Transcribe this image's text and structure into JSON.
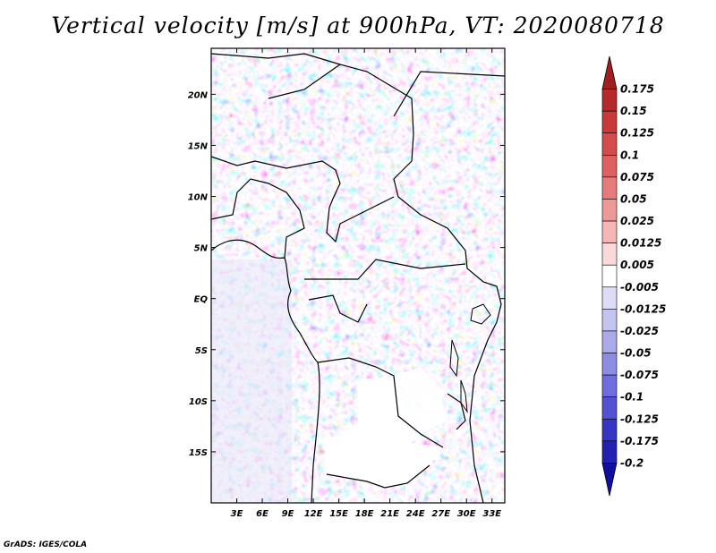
{
  "chart_data": {
    "type": "heatmap",
    "title": "Vertical velocity [m/s] at 900hPa, VT: 2020080718",
    "variable": "Vertical velocity",
    "units": "m/s",
    "level": "900hPa",
    "valid_time": "2020080718",
    "x_ticks": [
      "3E",
      "6E",
      "9E",
      "12E",
      "15E",
      "18E",
      "21E",
      "24E",
      "27E",
      "30E",
      "33E"
    ],
    "x_tick_values": [
      3,
      6,
      9,
      12,
      15,
      18,
      21,
      24,
      27,
      30,
      33
    ],
    "y_ticks": [
      "20N",
      "15N",
      "10N",
      "5N",
      "EQ",
      "5S",
      "10S",
      "15S"
    ],
    "y_tick_values": [
      20,
      15,
      10,
      5,
      0,
      -5,
      -10,
      -15
    ],
    "lon_range": [
      0,
      34.5
    ],
    "lat_range": [
      -20,
      24.5
    ],
    "colorbar": {
      "labels": [
        "0.175",
        "0.15",
        "0.125",
        "0.1",
        "0.075",
        "0.05",
        "0.025",
        "0.0125",
        "0.005",
        "-0.005",
        "-0.0125",
        "-0.025",
        "-0.05",
        "-0.075",
        "-0.1",
        "-0.125",
        "-0.175",
        "-0.2"
      ],
      "colors": [
        "#a11f1f",
        "#b52a2a",
        "#c83a3a",
        "#d54c4c",
        "#df6060",
        "#e57b7b",
        "#ee9898",
        "#f5b6b6",
        "#fbd9d9",
        "#ffffff",
        "#dcdcf6",
        "#c4c4f0",
        "#a9a9ec",
        "#8c8ce4",
        "#6e6ede",
        "#5252d2",
        "#3636c4",
        "#2222b2",
        "#1010a0"
      ]
    }
  },
  "footer": {
    "credit": "GrADS: IGES/COLA"
  }
}
